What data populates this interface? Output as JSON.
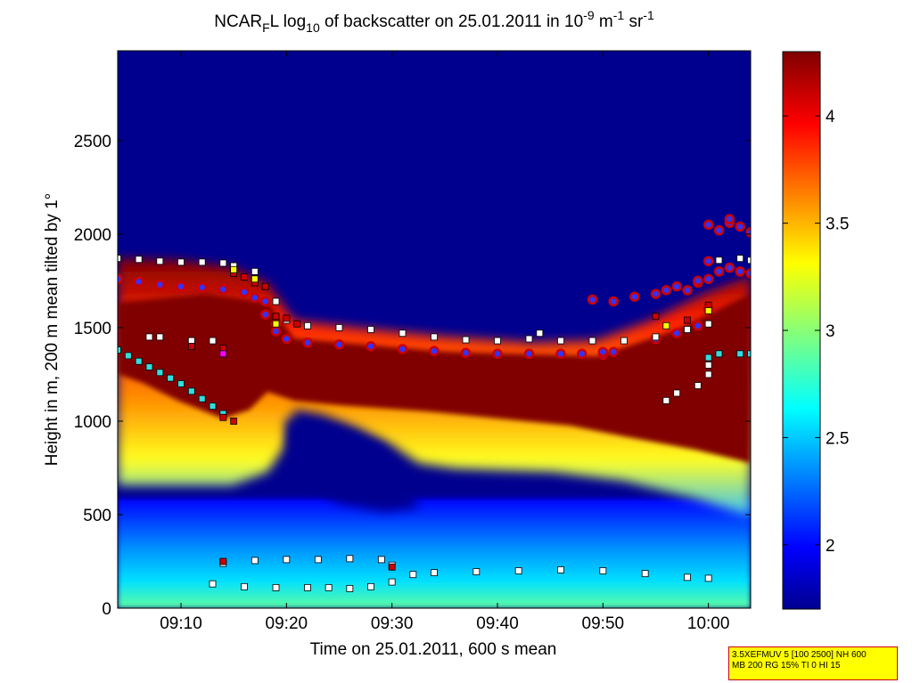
{
  "chart_data": {
    "type": "heatmap",
    "title": {
      "prefix": "NCAR",
      "sub1": "F",
      "mid1": "L log",
      "sub2": "10",
      "mid2": " of backscatter on 25.01.2011 in 10",
      "sup1": "-9",
      "mid3": " m",
      "sup2": "-1",
      "mid4": " sr",
      "sup3": "-1"
    },
    "xlabel": "Time on 25.01.2011, 600 s mean",
    "ylabel": "Height in m, 200 m mean tilted by 1°",
    "x_ticks": [
      "09:10",
      "09:20",
      "09:30",
      "09:40",
      "09:50",
      "10:00"
    ],
    "y_ticks": [
      "0",
      "500",
      "1000",
      "1500",
      "2000",
      "2500"
    ],
    "xlim": [
      "09:04",
      "10:04"
    ],
    "ylim": [
      0,
      2980
    ],
    "colorbar": {
      "ticks": [
        "2",
        "2.5",
        "3",
        "3.5",
        "4"
      ],
      "range": [
        1.7,
        4.3
      ],
      "colormap": "jet"
    },
    "colors": {
      "background_low": "#00008f",
      "saturated": "#800000",
      "marker_blue": "#3333ff",
      "marker_red": "#cc0000",
      "marker_cyan": "#33dddd",
      "marker_white": "#ffffff",
      "marker_magenta": "#ff00ff",
      "marker_yellow": "#ffff00"
    },
    "series": [
      {
        "marker": "circle-blue-red",
        "points": [
          [
            "09:04",
            1760
          ],
          [
            "09:06",
            1745
          ],
          [
            "09:08",
            1730
          ],
          [
            "09:10",
            1720
          ],
          [
            "09:12",
            1715
          ],
          [
            "09:14",
            1705
          ],
          [
            "09:16",
            1690
          ],
          [
            "09:17",
            1660
          ],
          [
            "09:18",
            1640
          ],
          [
            "09:18",
            1570
          ],
          [
            "09:19",
            1520
          ],
          [
            "09:19",
            1480
          ],
          [
            "09:20",
            1440
          ],
          [
            "09:22",
            1420
          ],
          [
            "09:25",
            1410
          ],
          [
            "09:28",
            1400
          ],
          [
            "09:31",
            1385
          ],
          [
            "09:34",
            1375
          ],
          [
            "09:37",
            1365
          ],
          [
            "09:40",
            1360
          ],
          [
            "09:43",
            1360
          ],
          [
            "09:46",
            1360
          ],
          [
            "09:48",
            1360
          ],
          [
            "09:50",
            1355
          ],
          [
            "09:50",
            1370
          ],
          [
            "09:49",
            1650
          ],
          [
            "09:51",
            1640
          ],
          [
            "09:53",
            1665
          ],
          [
            "09:55",
            1680
          ],
          [
            "09:56",
            1700
          ],
          [
            "09:57",
            1720
          ],
          [
            "09:58",
            1700
          ],
          [
            "09:59",
            1740
          ],
          [
            "10:00",
            1760
          ],
          [
            "10:00",
            1855
          ],
          [
            "09:59",
            1750
          ],
          [
            "10:01",
            1800
          ],
          [
            "10:02",
            1820
          ],
          [
            "10:03",
            1800
          ],
          [
            "10:04",
            1790
          ],
          [
            "10:00",
            2050
          ],
          [
            "10:01",
            2020
          ],
          [
            "10:02",
            2060
          ],
          [
            "10:02",
            2080
          ],
          [
            "10:03",
            2040
          ],
          [
            "10:04",
            2010
          ],
          [
            "09:51",
            1370
          ],
          [
            "09:55",
            1440
          ],
          [
            "09:57",
            1470
          ],
          [
            "09:59",
            1510
          ],
          [
            "10:00",
            1600
          ]
        ]
      },
      {
        "marker": "square-white",
        "points": [
          [
            "09:04",
            1870
          ],
          [
            "09:06",
            1865
          ],
          [
            "09:08",
            1855
          ],
          [
            "09:10",
            1850
          ],
          [
            "09:12",
            1850
          ],
          [
            "09:14",
            1845
          ],
          [
            "09:15",
            1830
          ],
          [
            "09:17",
            1800
          ],
          [
            "09:19",
            1640
          ],
          [
            "09:20",
            1540
          ],
          [
            "09:22",
            1510
          ],
          [
            "09:25",
            1500
          ],
          [
            "09:28",
            1490
          ],
          [
            "09:31",
            1470
          ],
          [
            "09:34",
            1450
          ],
          [
            "09:37",
            1435
          ],
          [
            "09:40",
            1430
          ],
          [
            "09:43",
            1440
          ],
          [
            "09:44",
            1470
          ],
          [
            "09:46",
            1430
          ],
          [
            "09:49",
            1430
          ],
          [
            "09:52",
            1430
          ],
          [
            "09:55",
            1450
          ],
          [
            "09:58",
            1490
          ],
          [
            "10:00",
            1520
          ],
          [
            "10:01",
            1860
          ],
          [
            "10:03",
            1870
          ],
          [
            "10:04",
            1860
          ],
          [
            "09:07",
            1450
          ],
          [
            "09:08",
            1450
          ],
          [
            "09:11",
            1430
          ],
          [
            "09:13",
            1430
          ],
          [
            "09:56",
            1110
          ],
          [
            "09:57",
            1150
          ],
          [
            "09:59",
            1190
          ],
          [
            "10:00",
            1250
          ],
          [
            "10:00",
            1300
          ],
          [
            "09:14",
            240
          ],
          [
            "09:17",
            255
          ],
          [
            "09:20",
            260
          ],
          [
            "09:23",
            260
          ],
          [
            "09:26",
            265
          ],
          [
            "09:29",
            260
          ],
          [
            "09:30",
            230
          ],
          [
            "09:13",
            130
          ],
          [
            "09:16",
            115
          ],
          [
            "09:19",
            110
          ],
          [
            "09:22",
            110
          ],
          [
            "09:24",
            110
          ],
          [
            "09:26",
            105
          ],
          [
            "09:28",
            115
          ],
          [
            "09:30",
            140
          ],
          [
            "09:32",
            180
          ],
          [
            "09:34",
            190
          ],
          [
            "09:38",
            195
          ],
          [
            "09:42",
            200
          ],
          [
            "09:46",
            205
          ],
          [
            "09:50",
            200
          ],
          [
            "09:54",
            185
          ],
          [
            "09:58",
            165
          ],
          [
            "10:00",
            160
          ]
        ]
      },
      {
        "marker": "square-cyan",
        "points": [
          [
            "09:04",
            1380
          ],
          [
            "09:05",
            1350
          ],
          [
            "09:06",
            1320
          ],
          [
            "09:07",
            1290
          ],
          [
            "09:08",
            1260
          ],
          [
            "09:09",
            1230
          ],
          [
            "09:10",
            1200
          ],
          [
            "09:11",
            1160
          ],
          [
            "09:12",
            1120
          ],
          [
            "09:13",
            1080
          ],
          [
            "09:14",
            1040
          ],
          [
            "10:00",
            1340
          ],
          [
            "10:01",
            1360
          ],
          [
            "10:03",
            1360
          ],
          [
            "10:04",
            1360
          ]
        ]
      },
      {
        "marker": "square-red",
        "points": [
          [
            "09:11",
            1400
          ],
          [
            "09:14",
            1390
          ],
          [
            "09:14",
            1020
          ],
          [
            "09:15",
            1000
          ],
          [
            "09:15",
            1790
          ],
          [
            "09:16",
            1770
          ],
          [
            "09:17",
            1740
          ],
          [
            "09:18",
            1720
          ],
          [
            "09:19",
            1560
          ],
          [
            "09:20",
            1550
          ],
          [
            "09:21",
            1520
          ],
          [
            "09:14",
            250
          ],
          [
            "09:30",
            220
          ],
          [
            "09:55",
            1560
          ],
          [
            "09:58",
            1540
          ],
          [
            "10:00",
            1620
          ]
        ]
      },
      {
        "marker": "square-yellow",
        "points": [
          [
            "09:15",
            1810
          ],
          [
            "09:17",
            1760
          ],
          [
            "09:19",
            1520
          ],
          [
            "09:56",
            1510
          ],
          [
            "10:00",
            1590
          ]
        ]
      },
      {
        "marker": "square-magenta",
        "points": [
          [
            "09:14",
            1360
          ]
        ]
      }
    ]
  },
  "info_box": {
    "line1": "3.5XEFMUV 5 [100 2500] NH 600",
    "line2": "MB 200 RG 15% TI 0 HI 15"
  }
}
